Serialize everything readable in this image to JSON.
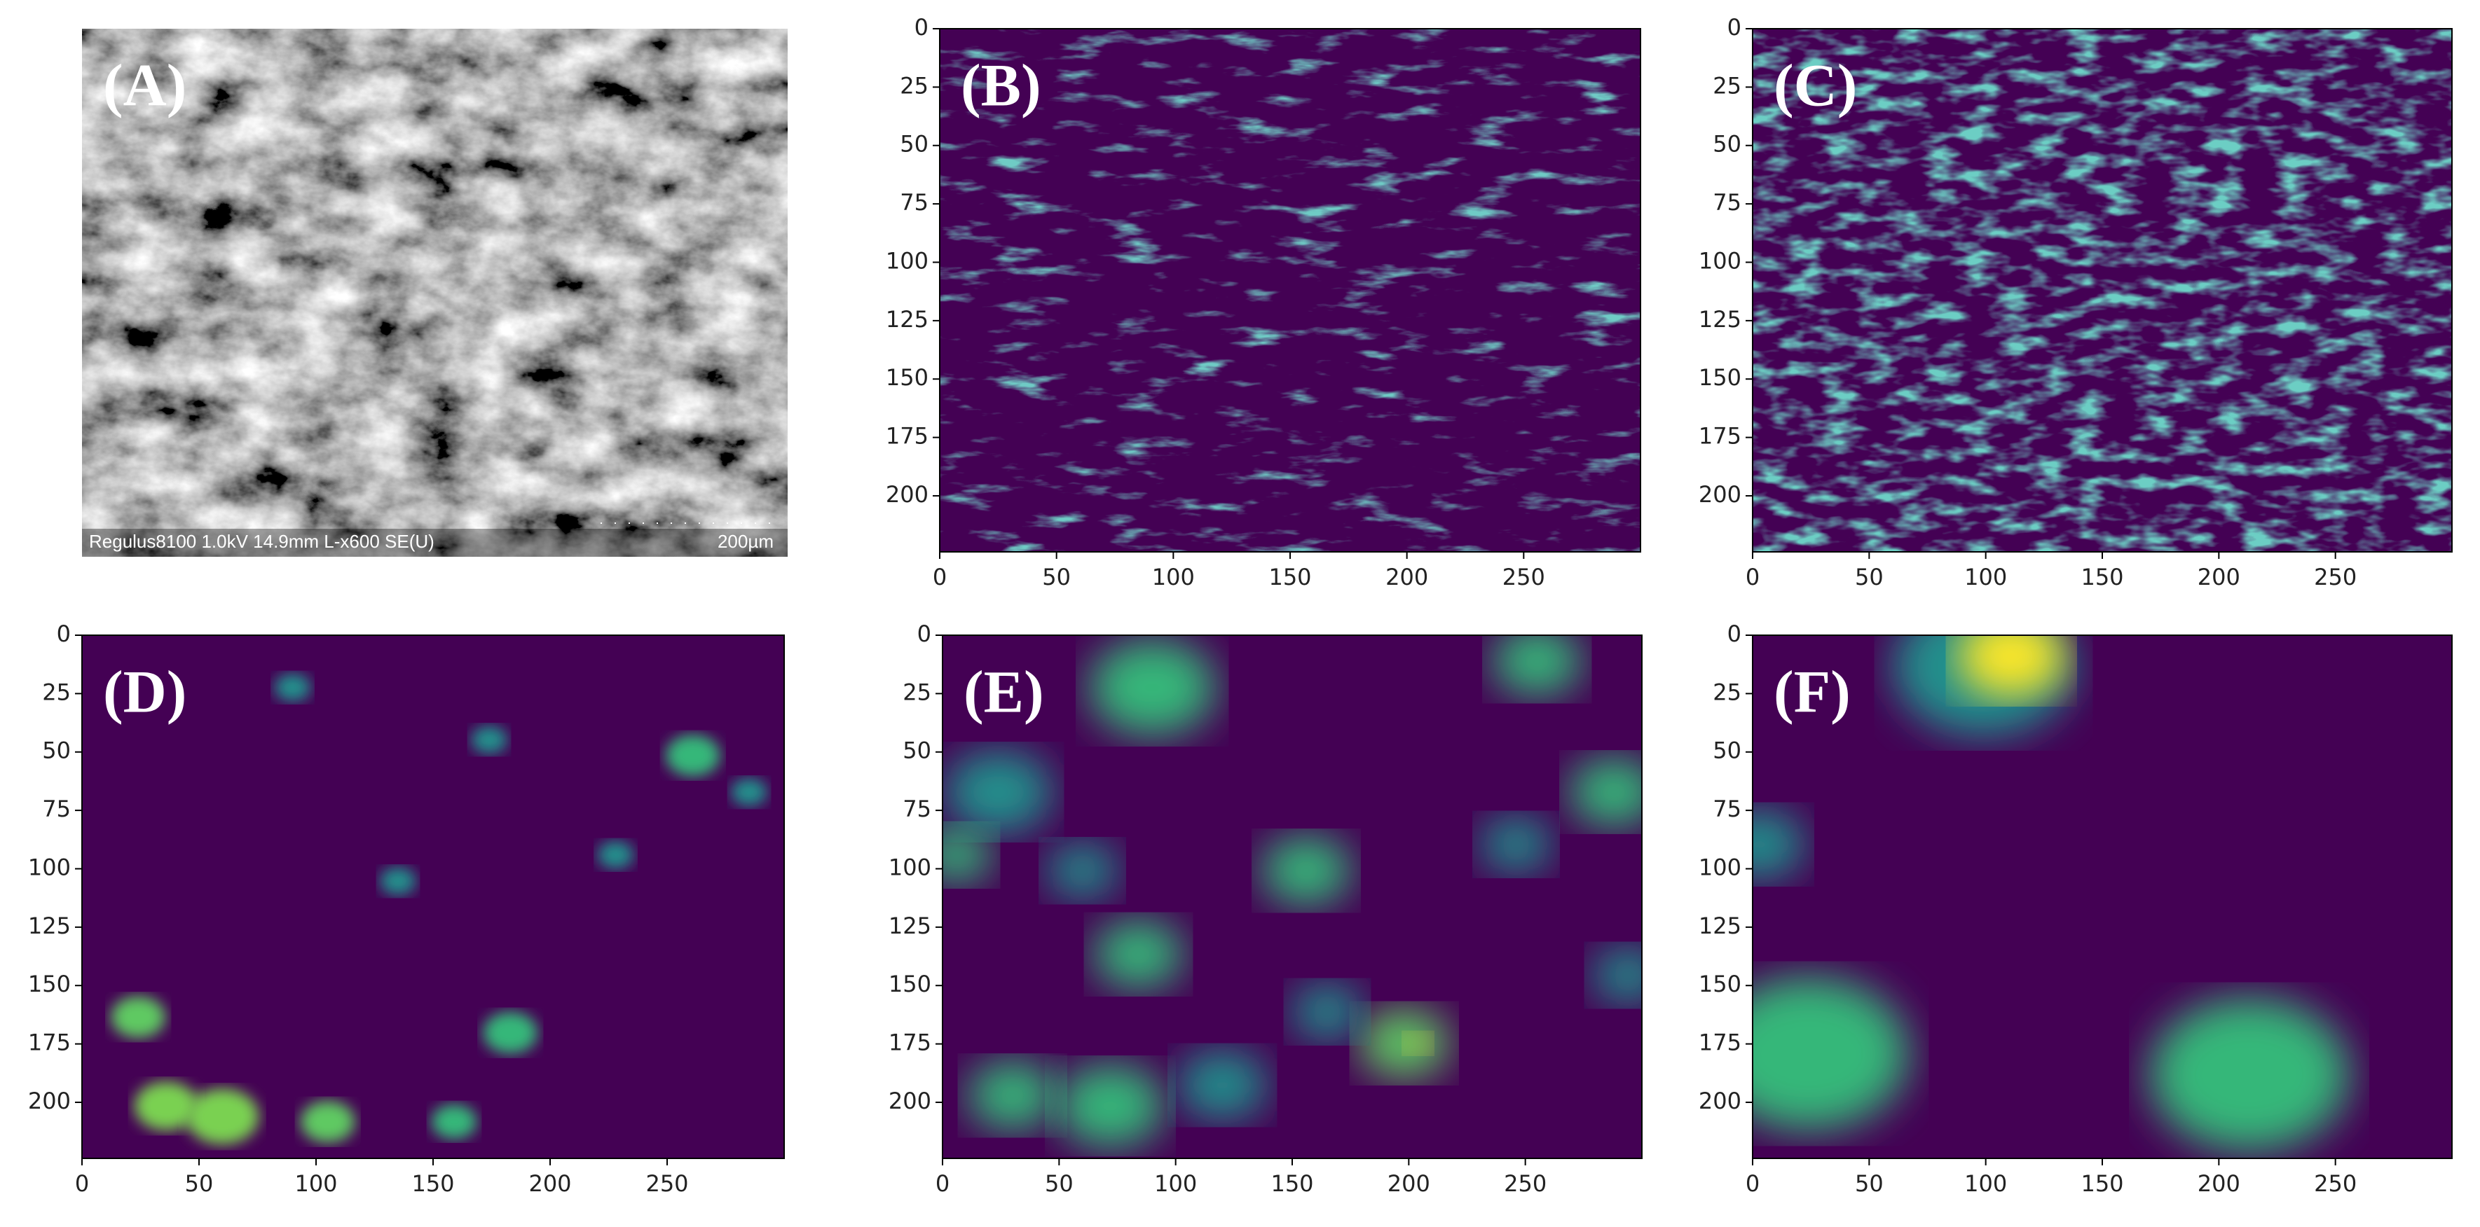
{
  "chart_data": [
    {
      "type": "image",
      "label": "(A)",
      "caption": "Regulus8100 1.0kV 14.9mm L-x600 SE(U)",
      "scale_label": "200µm"
    },
    {
      "type": "heatmap",
      "label": "(B)",
      "xlim": [
        0,
        300
      ],
      "ylim": [
        224,
        0
      ],
      "xticks": [
        0,
        50,
        100,
        150,
        200,
        250
      ],
      "yticks": [
        0,
        25,
        50,
        75,
        100,
        125,
        150,
        175,
        200
      ]
    },
    {
      "type": "heatmap",
      "label": "(C)",
      "xlim": [
        0,
        300
      ],
      "ylim": [
        224,
        0
      ],
      "xticks": [
        0,
        50,
        100,
        150,
        200,
        250
      ],
      "yticks": [
        0,
        25,
        50,
        75,
        100,
        125,
        150,
        175,
        200
      ]
    },
    {
      "type": "heatmap",
      "label": "(D)",
      "xlim": [
        0,
        300
      ],
      "ylim": [
        224,
        0
      ],
      "xticks": [
        0,
        50,
        100,
        150,
        200,
        250
      ],
      "yticks": [
        0,
        25,
        50,
        75,
        100,
        125,
        150,
        175,
        200
      ]
    },
    {
      "type": "heatmap",
      "label": "(E)",
      "xlim": [
        0,
        300
      ],
      "ylim": [
        224,
        0
      ],
      "xticks": [
        0,
        50,
        100,
        150,
        200,
        250
      ],
      "yticks": [
        0,
        25,
        50,
        75,
        100,
        125,
        150,
        175,
        200
      ]
    },
    {
      "type": "heatmap",
      "label": "(F)",
      "xlim": [
        0,
        300
      ],
      "ylim": [
        224,
        0
      ],
      "xticks": [
        0,
        50,
        100,
        150,
        200,
        250
      ],
      "yticks": [
        0,
        25,
        50,
        75,
        100,
        125,
        150,
        175,
        200
      ]
    }
  ]
}
